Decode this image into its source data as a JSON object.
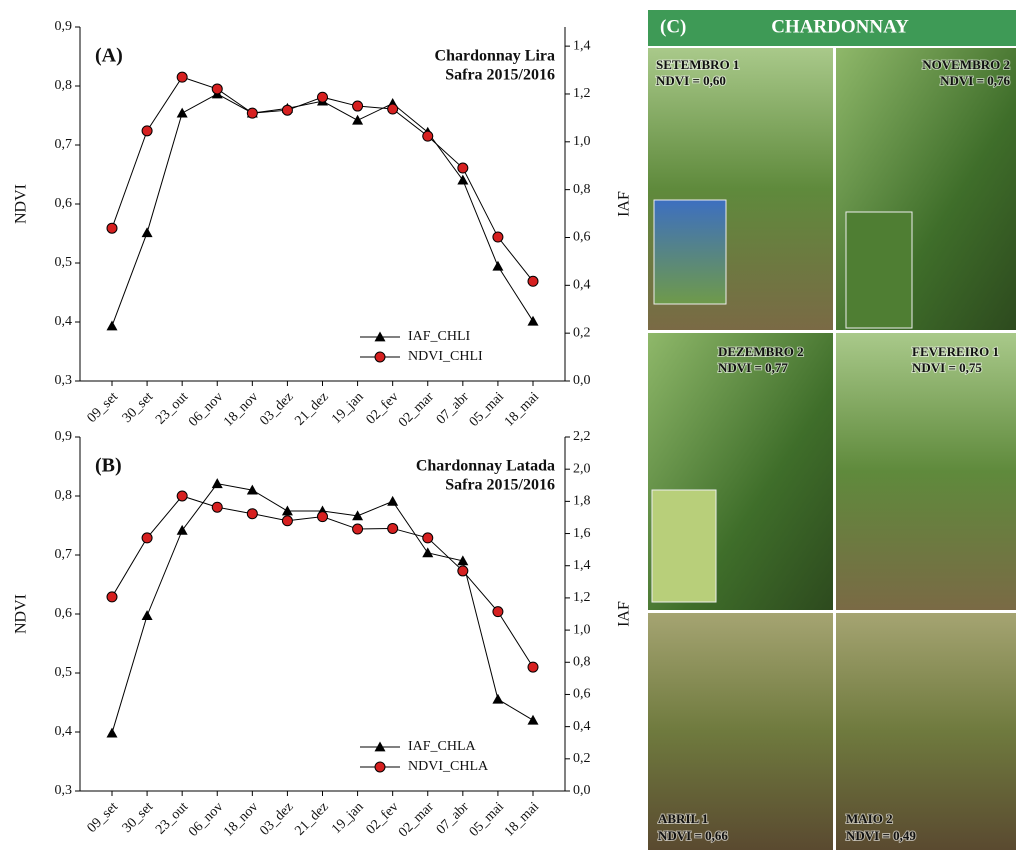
{
  "chart_data": [
    {
      "type": "line",
      "panel": "(A)",
      "annotations": [
        "Chardonnay Lira",
        "Safra 2015/2016"
      ],
      "ylabel": "NDVI",
      "y2label": "IAF",
      "legend": "lower right",
      "categories": [
        "09_set",
        "30_set",
        "23_out",
        "06_nov",
        "18_nov",
        "03_dez",
        "21_dez",
        "19_jan",
        "02_fev",
        "02_mar",
        "07_abr",
        "05_mai",
        "18_mai"
      ],
      "ylim": [
        0.3,
        0.9
      ],
      "yticks": [
        {
          "value": 0.3,
          "label": "0,3"
        },
        {
          "value": 0.4,
          "label": "0,4"
        },
        {
          "value": 0.5,
          "label": "0,5"
        },
        {
          "value": 0.6,
          "label": "0,6"
        },
        {
          "value": 0.7,
          "label": "0,7"
        },
        {
          "value": 0.8,
          "label": "0,8"
        },
        {
          "value": 0.9,
          "label": "0,9"
        }
      ],
      "y2lim": [
        0,
        1.48
      ],
      "y2ticks": [
        {
          "value": 0,
          "label": "0,0"
        },
        {
          "value": 0.2,
          "label": "0,2"
        },
        {
          "value": 0.4,
          "label": "0,4"
        },
        {
          "value": 0.6,
          "label": "0,6"
        },
        {
          "value": 0.8,
          "label": "0,8"
        },
        {
          "value": 1.0,
          "label": "1,0"
        },
        {
          "value": 1.2,
          "label": "1,2"
        },
        {
          "value": 1.4,
          "label": "1,4"
        }
      ],
      "series": [
        {
          "name": "IAF_CHLI",
          "color": "#000000",
          "marker": "triangle",
          "axis": "y2",
          "values": [
            0.23,
            0.62,
            1.12,
            1.2,
            1.12,
            1.14,
            1.17,
            1.09,
            1.16,
            1.04,
            0.84,
            0.48,
            0.25
          ]
        },
        {
          "name": "NDVI_CHLI",
          "color": "#d62020",
          "marker": "circle",
          "values": [
            0.559,
            0.724,
            0.815,
            0.795,
            0.754,
            0.759,
            0.781,
            0.766,
            0.761,
            0.715,
            0.661,
            0.544,
            0.469
          ]
        }
      ]
    },
    {
      "type": "line",
      "panel": "(B)",
      "annotations": [
        "Chardonnay Latada",
        "Safra 2015/2016"
      ],
      "ylabel": "NDVI",
      "y2label": "IAF",
      "legend": "lower right",
      "categories": [
        "09_set",
        "30_set",
        "23_out",
        "06_nov",
        "18_nov",
        "03_dez",
        "21_dez",
        "19_jan",
        "02_fev",
        "02_mar",
        "07_abr",
        "05_mai",
        "18_mai"
      ],
      "ylim": [
        0.3,
        0.9
      ],
      "yticks": [
        {
          "value": 0.3,
          "label": "0,3"
        },
        {
          "value": 0.4,
          "label": "0,4"
        },
        {
          "value": 0.5,
          "label": "0,5"
        },
        {
          "value": 0.6,
          "label": "0,6"
        },
        {
          "value": 0.7,
          "label": "0,7"
        },
        {
          "value": 0.8,
          "label": "0,8"
        },
        {
          "value": 0.9,
          "label": "0,9"
        }
      ],
      "y2lim": [
        0,
        2.2
      ],
      "y2ticks": [
        {
          "value": 0,
          "label": "0,0"
        },
        {
          "value": 0.2,
          "label": "0,2"
        },
        {
          "value": 0.4,
          "label": "0,4"
        },
        {
          "value": 0.6,
          "label": "0,6"
        },
        {
          "value": 0.8,
          "label": "0,8"
        },
        {
          "value": 1.0,
          "label": "1,0"
        },
        {
          "value": 1.2,
          "label": "1,2"
        },
        {
          "value": 1.4,
          "label": "1,4"
        },
        {
          "value": 1.6,
          "label": "1,6"
        },
        {
          "value": 1.8,
          "label": "1,8"
        },
        {
          "value": 2.0,
          "label": "2,0"
        },
        {
          "value": 2.2,
          "label": "2,2"
        }
      ],
      "series": [
        {
          "name": "IAF_CHLA",
          "color": "#000000",
          "marker": "triangle",
          "axis": "y2",
          "values": [
            0.36,
            1.09,
            1.62,
            1.91,
            1.87,
            1.74,
            1.74,
            1.71,
            1.8,
            1.48,
            1.43,
            0.57,
            0.44
          ]
        },
        {
          "name": "NDVI_CHLA",
          "color": "#d62020",
          "marker": "circle",
          "values": [
            0.629,
            0.729,
            0.8,
            0.781,
            0.77,
            0.758,
            0.765,
            0.744,
            0.745,
            0.729,
            0.673,
            0.604,
            0.51
          ]
        }
      ]
    }
  ],
  "panel_c": {
    "label": "(C)",
    "title": "CHARDONNAY",
    "photos": [
      {
        "month": "SETEMBRO 1",
        "ndvi": "NDVI = 0,60"
      },
      {
        "month": "NOVEMBRO 2",
        "ndvi": "NDVI = 0,76"
      },
      {
        "month": "DEZEMBRO 2",
        "ndvi": "NDVI = 0,77"
      },
      {
        "month": "FEVEREIRO 1",
        "ndvi": "NDVI = 0,75"
      },
      {
        "month": "ABRIL 1",
        "ndvi": "NDVI = 0,66"
      },
      {
        "month": "MAIO 2",
        "ndvi": "NDVI = 0,49"
      }
    ]
  }
}
